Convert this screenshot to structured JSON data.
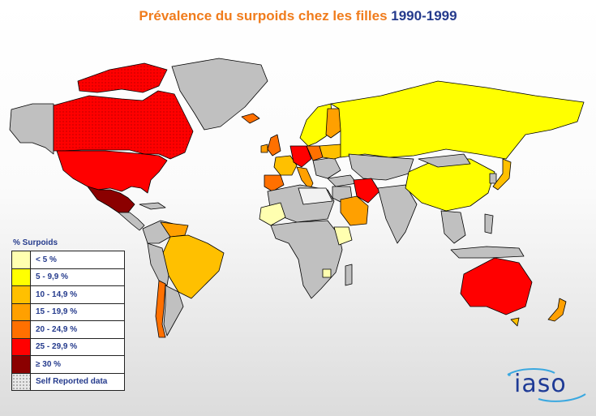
{
  "title": {
    "main": "Prévalence du surpoids chez les filles ",
    "years": "1990-1999"
  },
  "legend": {
    "title": "% Surpoids",
    "items": [
      {
        "label": "< 5 %",
        "color": "#ffffb0"
      },
      {
        "label": "5 - 9,9 %",
        "color": "#ffff00"
      },
      {
        "label": "10 - 14,9 %",
        "color": "#ffc000"
      },
      {
        "label": "15 - 19,9 %",
        "color": "#ffa000"
      },
      {
        "label": "20 - 24,9 %",
        "color": "#ff7000"
      },
      {
        "label": "25 - 29,9 %",
        "color": "#ff0000"
      },
      {
        "label": "≥ 30 %",
        "color": "#8b0000"
      },
      {
        "label": "Self Reported data",
        "color": "pattern-dots"
      }
    ]
  },
  "logo": {
    "text": "iaso"
  },
  "colors": {
    "no_data": "#c0c0c0",
    "ocean": "#ffffff",
    "title_orange": "#f07c1c",
    "title_blue": "#243a8c"
  }
}
